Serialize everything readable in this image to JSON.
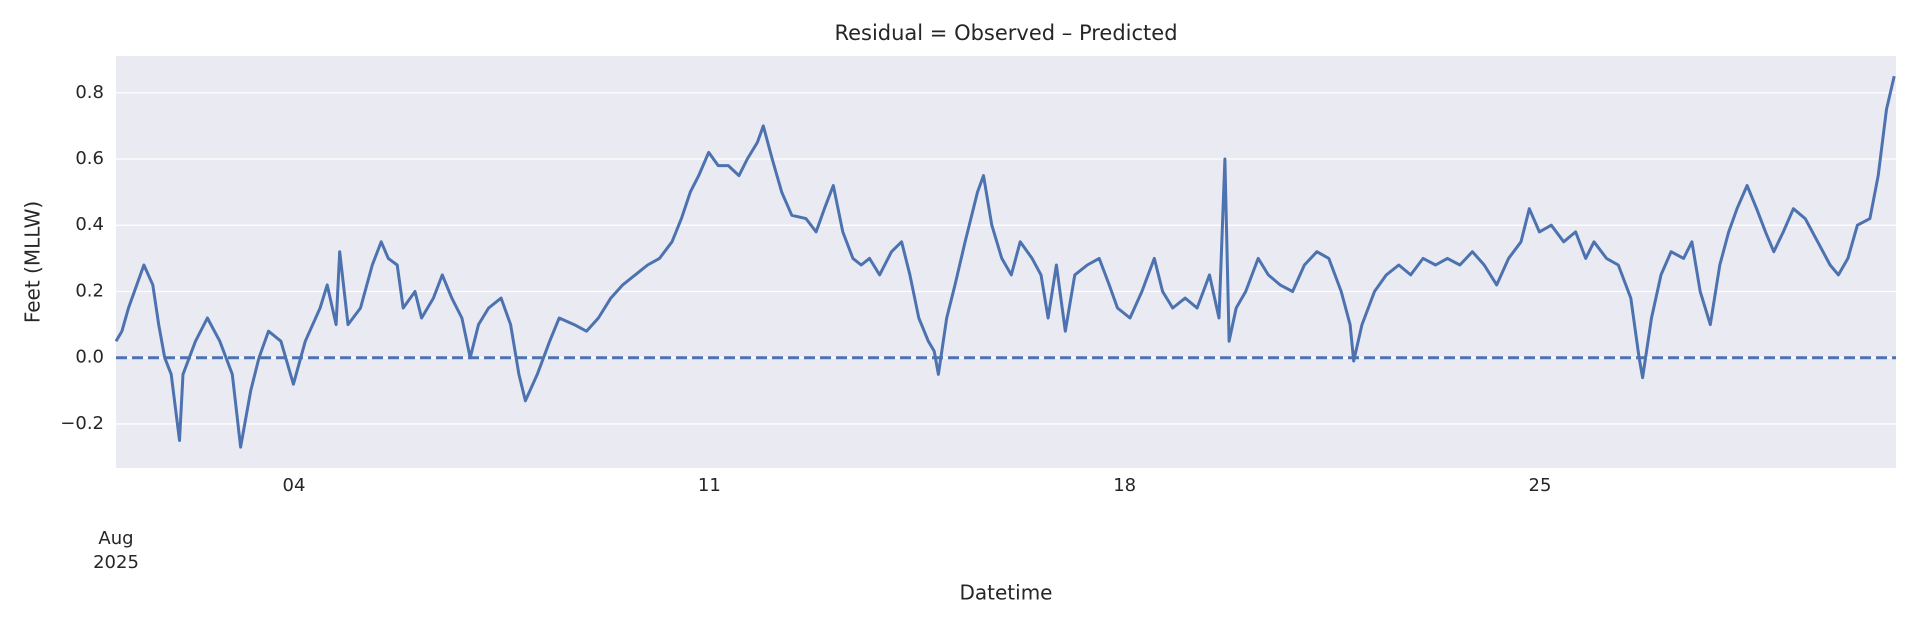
{
  "chart_data": {
    "type": "line",
    "title": "Residual = Observed – Predicted",
    "x_label": "Datetime",
    "y_label": "Feet (MLLW)",
    "x": [
      1.0,
      1.1,
      1.21,
      1.31,
      1.47,
      1.62,
      1.72,
      1.82,
      1.93,
      2.07,
      2.13,
      2.34,
      2.54,
      2.75,
      2.96,
      3.1,
      3.27,
      3.41,
      3.57,
      3.78,
      3.99,
      4.19,
      4.44,
      4.56,
      4.71,
      4.77,
      4.91,
      5.12,
      5.32,
      5.47,
      5.59,
      5.74,
      5.84,
      6.04,
      6.15,
      6.35,
      6.5,
      6.66,
      6.83,
      6.97,
      7.11,
      7.28,
      7.49,
      7.65,
      7.79,
      7.9,
      8.1,
      8.31,
      8.47,
      8.72,
      8.93,
      9.13,
      9.34,
      9.54,
      9.75,
      9.96,
      10.16,
      10.37,
      10.53,
      10.68,
      10.82,
      10.99,
      11.15,
      11.32,
      11.5,
      11.64,
      11.81,
      11.91,
      12.06,
      12.22,
      12.39,
      12.63,
      12.8,
      12.94,
      13.09,
      13.25,
      13.42,
      13.56,
      13.7,
      13.87,
      14.07,
      14.24,
      14.38,
      14.53,
      14.69,
      14.79,
      14.86,
      15.0,
      15.14,
      15.31,
      15.52,
      15.62,
      15.76,
      15.93,
      16.09,
      16.24,
      16.44,
      16.59,
      16.71,
      16.85,
      17.0,
      17.16,
      17.37,
      17.57,
      17.74,
      17.88,
      18.09,
      18.29,
      18.5,
      18.64,
      18.81,
      19.02,
      19.22,
      19.43,
      19.59,
      19.69,
      19.76,
      19.88,
      20.04,
      20.25,
      20.42,
      20.62,
      20.83,
      21.03,
      21.24,
      21.44,
      21.65,
      21.8,
      21.86,
      22.0,
      22.21,
      22.41,
      22.62,
      22.82,
      23.03,
      23.24,
      23.44,
      23.65,
      23.86,
      24.06,
      24.27,
      24.47,
      24.68,
      24.82,
      24.99,
      25.19,
      25.4,
      25.6,
      25.77,
      25.91,
      26.12,
      26.32,
      26.53,
      26.67,
      26.73,
      26.88,
      27.04,
      27.21,
      27.42,
      27.56,
      27.7,
      27.87,
      28.03,
      28.18,
      28.32,
      28.49,
      28.65,
      28.8,
      28.94,
      29.1,
      29.27,
      29.47,
      29.68,
      29.89,
      30.03,
      30.19,
      30.35,
      30.56,
      30.7,
      30.84,
      30.97
    ],
    "series": [
      {
        "color": "#4c72b0",
        "values": [
          0.05,
          0.08,
          0.15,
          0.2,
          0.28,
          0.22,
          0.1,
          0.0,
          -0.05,
          -0.25,
          -0.05,
          0.05,
          0.12,
          0.05,
          -0.05,
          -0.27,
          -0.1,
          0.0,
          0.08,
          0.05,
          -0.08,
          0.05,
          0.15,
          0.22,
          0.1,
          0.32,
          0.1,
          0.15,
          0.28,
          0.35,
          0.3,
          0.28,
          0.15,
          0.2,
          0.12,
          0.18,
          0.25,
          0.18,
          0.12,
          0.0,
          0.1,
          0.15,
          0.18,
          0.1,
          -0.05,
          -0.13,
          -0.05,
          0.05,
          0.12,
          0.1,
          0.08,
          0.12,
          0.18,
          0.22,
          0.25,
          0.28,
          0.3,
          0.35,
          0.42,
          0.5,
          0.55,
          0.62,
          0.58,
          0.58,
          0.55,
          0.6,
          0.65,
          0.7,
          0.6,
          0.5,
          0.43,
          0.42,
          0.38,
          0.45,
          0.52,
          0.38,
          0.3,
          0.28,
          0.3,
          0.25,
          0.32,
          0.35,
          0.25,
          0.12,
          0.05,
          0.02,
          -0.05,
          0.12,
          0.22,
          0.35,
          0.5,
          0.55,
          0.4,
          0.3,
          0.25,
          0.35,
          0.3,
          0.25,
          0.12,
          0.28,
          0.08,
          0.25,
          0.28,
          0.3,
          0.22,
          0.15,
          0.12,
          0.2,
          0.3,
          0.2,
          0.15,
          0.18,
          0.15,
          0.25,
          0.12,
          0.6,
          0.05,
          0.15,
          0.2,
          0.3,
          0.25,
          0.22,
          0.2,
          0.28,
          0.32,
          0.3,
          0.2,
          0.1,
          -0.01,
          0.1,
          0.2,
          0.25,
          0.28,
          0.25,
          0.3,
          0.28,
          0.3,
          0.28,
          0.32,
          0.28,
          0.22,
          0.3,
          0.35,
          0.45,
          0.38,
          0.4,
          0.35,
          0.38,
          0.3,
          0.35,
          0.3,
          0.28,
          0.18,
          0.0,
          -0.06,
          0.12,
          0.25,
          0.32,
          0.3,
          0.35,
          0.2,
          0.1,
          0.28,
          0.38,
          0.45,
          0.52,
          0.45,
          0.38,
          0.32,
          0.38,
          0.45,
          0.42,
          0.35,
          0.28,
          0.25,
          0.3,
          0.4,
          0.42,
          0.55,
          0.75,
          0.85
        ]
      }
    ],
    "reference_line": {
      "value": 0,
      "color": "#4c72b0",
      "linestyle": "dashed"
    },
    "xlim": [
      1,
      31
    ],
    "xticks": [
      {
        "value": 1,
        "label": "Aug\n2025"
      },
      {
        "value": 4,
        "label": "04"
      },
      {
        "value": 11,
        "label": "11"
      },
      {
        "value": 18,
        "label": "18"
      },
      {
        "value": 25,
        "label": "25"
      }
    ],
    "ylim": [
      -0.333,
      0.911
    ],
    "yticks": [
      {
        "value": -0.2,
        "label": "−0.2"
      },
      {
        "value": 0,
        "label": "0.0"
      },
      0.2,
      0.4,
      0.6,
      0.8
    ],
    "grid": "y",
    "background": "#eaeaf2"
  }
}
